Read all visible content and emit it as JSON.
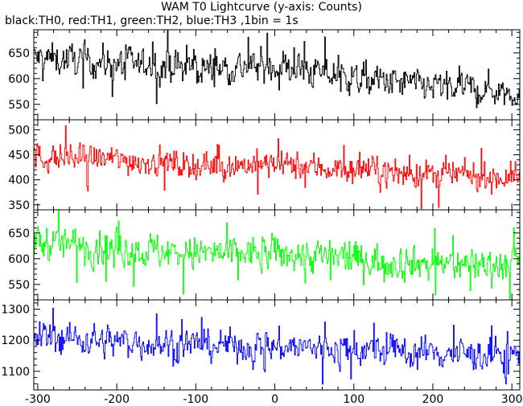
{
  "title": "WAM T0 Lightcurve (y-axis: Counts)",
  "subtitle": "black:TH0, red:TH1, green:TH2, blue:TH3 ,1bin = 1s",
  "chart_data": {
    "type": "line",
    "x_range": [
      -305,
      310
    ],
    "x_ticks": [
      -300,
      -200,
      -100,
      0,
      100,
      200,
      300
    ],
    "n_points": 615,
    "grid": false,
    "panels": [
      {
        "series_name": "TH0",
        "color": "#000000",
        "ylim": [
          520,
          695
        ],
        "y_ticks": [
          550,
          600,
          650
        ],
        "trend": {
          "x": [
            -300,
            -200,
            -100,
            0,
            100,
            200,
            300
          ],
          "y": [
            640,
            630,
            620,
            625,
            600,
            585,
            575
          ]
        },
        "noise_amplitude": 28
      },
      {
        "series_name": "TH1",
        "color": "#ff0000",
        "ylim": [
          340,
          520
        ],
        "y_ticks": [
          350,
          400,
          450,
          500
        ],
        "trend": {
          "x": [
            -300,
            -200,
            -100,
            0,
            100,
            200,
            300
          ],
          "y": [
            445,
            440,
            430,
            430,
            420,
            410,
            405
          ]
        },
        "noise_amplitude": 25
      },
      {
        "series_name": "TH2",
        "color": "#00ff00",
        "ylim": [
          520,
          695
        ],
        "y_ticks": [
          550,
          600,
          650
        ],
        "trend": {
          "x": [
            -300,
            -200,
            -100,
            0,
            100,
            200,
            300
          ],
          "y": [
            635,
            620,
            610,
            610,
            600,
            590,
            590
          ]
        },
        "noise_amplitude": 30
      },
      {
        "series_name": "TH3",
        "color": "#0000ff",
        "ylim": [
          1040,
          1330
        ],
        "y_ticks": [
          1100,
          1200,
          1300
        ],
        "trend": {
          "x": [
            -300,
            -200,
            -100,
            0,
            100,
            200,
            300
          ],
          "y": [
            1215,
            1195,
            1185,
            1180,
            1170,
            1160,
            1150
          ]
        },
        "noise_amplitude": 45
      }
    ]
  }
}
